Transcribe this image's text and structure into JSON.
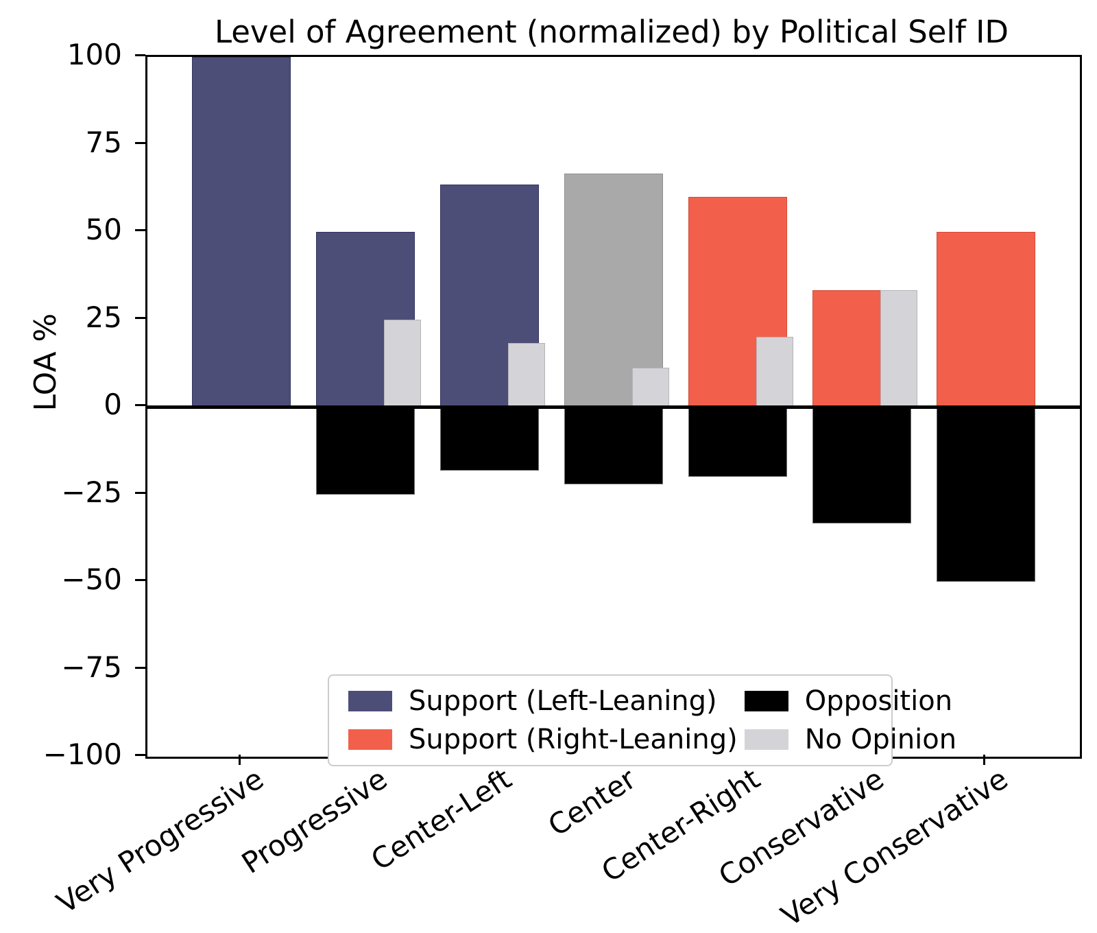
{
  "title": "Level of Agreement (normalized) by Political Self ID",
  "chart_data": {
    "type": "bar",
    "title": "Level of Agreement (normalized) by Political Self ID",
    "xlabel": "",
    "ylabel": "LOA %",
    "ylim": [
      -100,
      100
    ],
    "yticks": [
      100,
      75,
      50,
      25,
      0,
      -25,
      -50,
      -75,
      -100
    ],
    "grid": false,
    "legend_position": "lower center",
    "categories": [
      "Very Progressive",
      "Progressive",
      "Center-Left",
      "Center",
      "Center-Right",
      "Conservative",
      "Very Conservative"
    ],
    "series": [
      {
        "name": "Support",
        "values": [
          100,
          50,
          63.6,
          66.7,
          60,
          33.3,
          50
        ],
        "leans": [
          "left",
          "left",
          "left",
          "center",
          "right",
          "right",
          "right"
        ]
      },
      {
        "name": "Opposition",
        "values": [
          0,
          -25,
          -18.2,
          -22.2,
          -20,
          -33.3,
          -50
        ]
      },
      {
        "name": "No Opinion",
        "values": [
          0,
          25,
          18.2,
          11.1,
          20,
          33.3,
          0
        ]
      }
    ],
    "colors": {
      "support_left": "#4d4e78",
      "support_center": "#a9a9a9",
      "support_right": "#f2604b",
      "opposition": "#000000",
      "no_opinion": "#d4d4d8"
    },
    "legend": [
      {
        "label": "Support (Left-Leaning)",
        "color_key": "support_left"
      },
      {
        "label": "Opposition",
        "color_key": "opposition"
      },
      {
        "label": "Support (Right-Leaning)",
        "color_key": "support_right"
      },
      {
        "label": "No Opinion",
        "color_key": "no_opinion"
      }
    ]
  }
}
